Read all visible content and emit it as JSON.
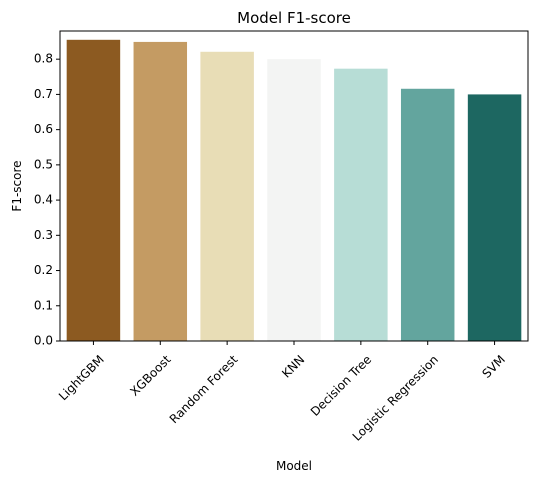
{
  "chart_data": {
    "type": "bar",
    "title": "Model F1-score",
    "xlabel": "Model",
    "ylabel": "F1-score",
    "categories": [
      "LightGBM",
      "XGBoost",
      "Random Forest",
      "KNN",
      "Decision Tree",
      "Logistic Regression",
      "SVM"
    ],
    "values": [
      0.855,
      0.849,
      0.821,
      0.8,
      0.773,
      0.716,
      0.7
    ],
    "colors": [
      "#8c5a21",
      "#c49b63",
      "#e8ddb6",
      "#f3f4f3",
      "#b7ddd6",
      "#63a59e",
      "#1d6761"
    ],
    "ylim": [
      0,
      0.88
    ],
    "yticks": [
      "0.0",
      "0.1",
      "0.2",
      "0.3",
      "0.4",
      "0.5",
      "0.6",
      "0.7",
      "0.8"
    ],
    "grid": false,
    "legend": "none"
  }
}
